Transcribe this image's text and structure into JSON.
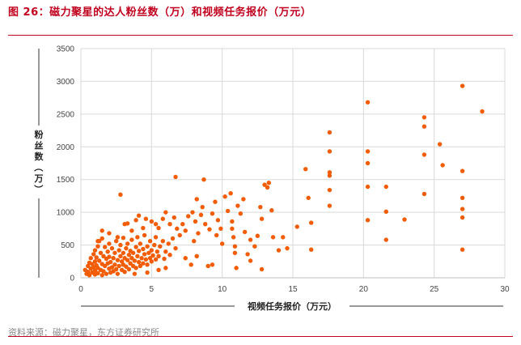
{
  "header": {
    "title": "图 26：磁力聚星的达人粉丝数（万）和视频任务报价（万元）"
  },
  "footer": {
    "source": "资料来源：磁力聚星，东方证券研究所"
  },
  "chart_data": {
    "type": "scatter",
    "title": "",
    "xlabel": "视频任务报价（万元）",
    "ylabel": "粉丝数（万）",
    "xlim": [
      0,
      30
    ],
    "ylim": [
      0,
      3500
    ],
    "xticks": [
      "0",
      "5",
      "10",
      "15",
      "20",
      "25",
      "30"
    ],
    "yticks": [
      "0",
      "500",
      "1000",
      "1500",
      "2000",
      "2500",
      "3000",
      "3500"
    ],
    "grid": true,
    "legend": "none",
    "marker_color": "#f25c05",
    "series": [
      {
        "points": [
          [
            0.3,
            120
          ],
          [
            0.4,
            60
          ],
          [
            0.5,
            180
          ],
          [
            0.5,
            90
          ],
          [
            0.6,
            40
          ],
          [
            0.6,
            230
          ],
          [
            0.7,
            140
          ],
          [
            0.7,
            300
          ],
          [
            0.8,
            80
          ],
          [
            0.8,
            210
          ],
          [
            0.9,
            160
          ],
          [
            0.9,
            360
          ],
          [
            1.0,
            50
          ],
          [
            1.0,
            110
          ],
          [
            1.0,
            250
          ],
          [
            1.0,
            420
          ],
          [
            1.1,
            190
          ],
          [
            1.1,
            310
          ],
          [
            1.2,
            70
          ],
          [
            1.2,
            150
          ],
          [
            1.2,
            480
          ],
          [
            1.3,
            260
          ],
          [
            1.3,
            560
          ],
          [
            1.4,
            120
          ],
          [
            1.4,
            380
          ],
          [
            1.5,
            40
          ],
          [
            1.5,
            210
          ],
          [
            1.5,
            600
          ],
          [
            1.6,
            330
          ],
          [
            1.6,
            100
          ],
          [
            1.7,
            470
          ],
          [
            1.7,
            180
          ],
          [
            1.8,
            290
          ],
          [
            1.8,
            60
          ],
          [
            1.9,
            400
          ],
          [
            1.9,
            220
          ],
          [
            2.0,
            140
          ],
          [
            2.0,
            520
          ],
          [
            2.0,
            320
          ],
          [
            2.1,
            80
          ],
          [
            2.1,
            240
          ],
          [
            2.2,
            160
          ],
          [
            2.2,
            450
          ],
          [
            2.3,
            300
          ],
          [
            2.3,
            100
          ],
          [
            2.4,
            380
          ],
          [
            2.4,
            200
          ],
          [
            2.5,
            130
          ],
          [
            2.5,
            560
          ],
          [
            2.6,
            270
          ],
          [
            2.6,
            60
          ],
          [
            2.7,
            420
          ],
          [
            2.7,
            180
          ],
          [
            2.8,
            330
          ],
          [
            2.8,
            500
          ],
          [
            2.9,
            120
          ],
          [
            2.9,
            250
          ],
          [
            3.0,
            380
          ],
          [
            3.0,
            610
          ],
          [
            3.0,
            200
          ],
          [
            3.1,
            90
          ],
          [
            3.1,
            300
          ],
          [
            3.2,
            450
          ],
          [
            3.2,
            170
          ],
          [
            3.3,
            270
          ],
          [
            3.3,
            520
          ],
          [
            3.4,
            350
          ],
          [
            3.4,
            130
          ],
          [
            3.5,
            220
          ],
          [
            3.5,
            410
          ],
          [
            3.6,
            300
          ],
          [
            3.6,
            580
          ],
          [
            3.7,
            180
          ],
          [
            3.7,
            380
          ],
          [
            3.8,
            260
          ],
          [
            3.9,
            470
          ],
          [
            3.9,
            150
          ],
          [
            4.0,
            330
          ],
          [
            4.0,
            620
          ],
          [
            4.1,
            240
          ],
          [
            4.1,
            410
          ],
          [
            4.2,
            180
          ],
          [
            4.2,
            520
          ],
          [
            4.3,
            300
          ],
          [
            4.4,
            440
          ],
          [
            4.4,
            220
          ],
          [
            4.5,
            360
          ],
          [
            4.5,
            650
          ],
          [
            4.6,
            280
          ],
          [
            4.7,
            480
          ],
          [
            4.7,
            200
          ],
          [
            4.8,
            380
          ],
          [
            4.9,
            300
          ],
          [
            4.9,
            560
          ],
          [
            5.0,
            420
          ],
          [
            5.0,
            250
          ],
          [
            5.1,
            340
          ],
          [
            5.2,
            500
          ],
          [
            5.3,
            280
          ],
          [
            5.3,
            620
          ],
          [
            5.4,
            400
          ],
          [
            5.5,
            330
          ],
          [
            5.6,
            480
          ],
          [
            5.8,
            560
          ],
          [
            5.9,
            290
          ],
          [
            6.0,
            400
          ],
          [
            6.2,
            520
          ],
          [
            6.3,
            350
          ],
          [
            6.5,
            600
          ],
          [
            6.7,
            450
          ],
          [
            1.2,
            560
          ],
          [
            1.5,
            720
          ],
          [
            2.0,
            680
          ],
          [
            2.6,
            620
          ],
          [
            2.8,
            1270
          ],
          [
            3.1,
            820
          ],
          [
            3.3,
            830
          ],
          [
            3.6,
            720
          ],
          [
            3.9,
            880
          ],
          [
            4.1,
            950
          ],
          [
            4.4,
            760
          ],
          [
            4.6,
            900
          ],
          [
            5.0,
            860
          ],
          [
            5.3,
            820
          ],
          [
            5.5,
            760
          ],
          [
            5.8,
            900
          ],
          [
            6.0,
            1000
          ],
          [
            6.3,
            820
          ],
          [
            6.6,
            920
          ],
          [
            6.7,
            1540
          ],
          [
            6.8,
            750
          ],
          [
            7.0,
            650
          ],
          [
            7.2,
            820
          ],
          [
            7.4,
            720
          ],
          [
            7.6,
            940
          ],
          [
            7.9,
            1000
          ],
          [
            8.0,
            560
          ],
          [
            8.1,
            860
          ],
          [
            8.2,
            1200
          ],
          [
            8.3,
            680
          ],
          [
            8.5,
            960
          ],
          [
            8.6,
            1080
          ],
          [
            8.7,
            1500
          ],
          [
            8.8,
            820
          ],
          [
            9.0,
            180
          ],
          [
            9.1,
            740
          ],
          [
            9.3,
            980
          ],
          [
            9.5,
            1160
          ],
          [
            9.6,
            650
          ],
          [
            9.7,
            880
          ],
          [
            9.9,
            750
          ],
          [
            10.0,
            520
          ],
          [
            10.2,
            1240
          ],
          [
            10.4,
            1020
          ],
          [
            10.6,
            1290
          ],
          [
            10.7,
            860
          ],
          [
            10.7,
            750
          ],
          [
            10.8,
            620
          ],
          [
            10.9,
            480
          ],
          [
            10.9,
            380
          ],
          [
            11.1,
            1100
          ],
          [
            11.3,
            980
          ],
          [
            11.5,
            1200
          ],
          [
            11.6,
            700
          ],
          [
            11.8,
            360
          ],
          [
            12.0,
            580
          ],
          [
            12.0,
            260
          ],
          [
            12.3,
            480
          ],
          [
            12.5,
            640
          ],
          [
            12.7,
            1080
          ],
          [
            12.8,
            900
          ],
          [
            13.0,
            1420
          ],
          [
            13.2,
            1380
          ],
          [
            13.3,
            1450
          ],
          [
            13.5,
            1030
          ],
          [
            13.6,
            620
          ],
          [
            14.0,
            420
          ],
          [
            14.3,
            620
          ],
          [
            14.6,
            450
          ],
          [
            15.3,
            780
          ],
          [
            15.9,
            1660
          ],
          [
            16.1,
            1220
          ],
          [
            16.3,
            840
          ],
          [
            16.3,
            430
          ],
          [
            17.6,
            2220
          ],
          [
            17.6,
            1930
          ],
          [
            17.6,
            1610
          ],
          [
            17.6,
            1560
          ],
          [
            17.6,
            1340
          ],
          [
            17.6,
            1100
          ],
          [
            20.3,
            2680
          ],
          [
            20.3,
            1930
          ],
          [
            20.3,
            1750
          ],
          [
            20.3,
            1390
          ],
          [
            20.3,
            880
          ],
          [
            21.6,
            1390
          ],
          [
            21.6,
            1010
          ],
          [
            21.6,
            580
          ],
          [
            22.9,
            890
          ],
          [
            24.3,
            2450
          ],
          [
            24.3,
            2310
          ],
          [
            24.3,
            1880
          ],
          [
            24.3,
            1280
          ],
          [
            25.4,
            2040
          ],
          [
            25.6,
            1720
          ],
          [
            27.0,
            2930
          ],
          [
            27.0,
            1630
          ],
          [
            27.0,
            1220
          ],
          [
            27.0,
            1050
          ],
          [
            27.0,
            920
          ],
          [
            27.0,
            430
          ],
          [
            28.4,
            2540
          ],
          [
            7.8,
            200
          ],
          [
            8.2,
            330
          ],
          [
            9.3,
            200
          ],
          [
            12.8,
            130
          ],
          [
            11.0,
            150
          ],
          [
            6.0,
            150
          ],
          [
            7.4,
            300
          ],
          [
            5.5,
            120
          ],
          [
            4.7,
            80
          ],
          [
            3.8,
            60
          ]
        ]
      }
    ]
  }
}
